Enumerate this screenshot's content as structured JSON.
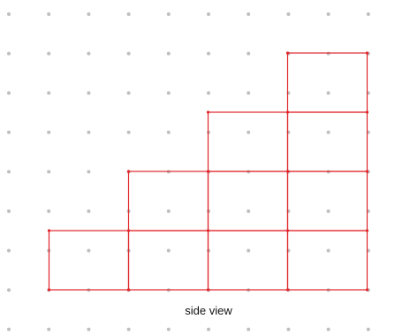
{
  "diagram": {
    "caption": "side view",
    "dot_color": "#bfbfbf",
    "line_color": "#e0262b",
    "grid": {
      "columns": 10,
      "rows": 9
    },
    "columns": [
      {
        "index": 0,
        "height": 1
      },
      {
        "index": 1,
        "height": 2
      },
      {
        "index": 2,
        "height": 3
      },
      {
        "index": 3,
        "height": 4
      }
    ]
  }
}
